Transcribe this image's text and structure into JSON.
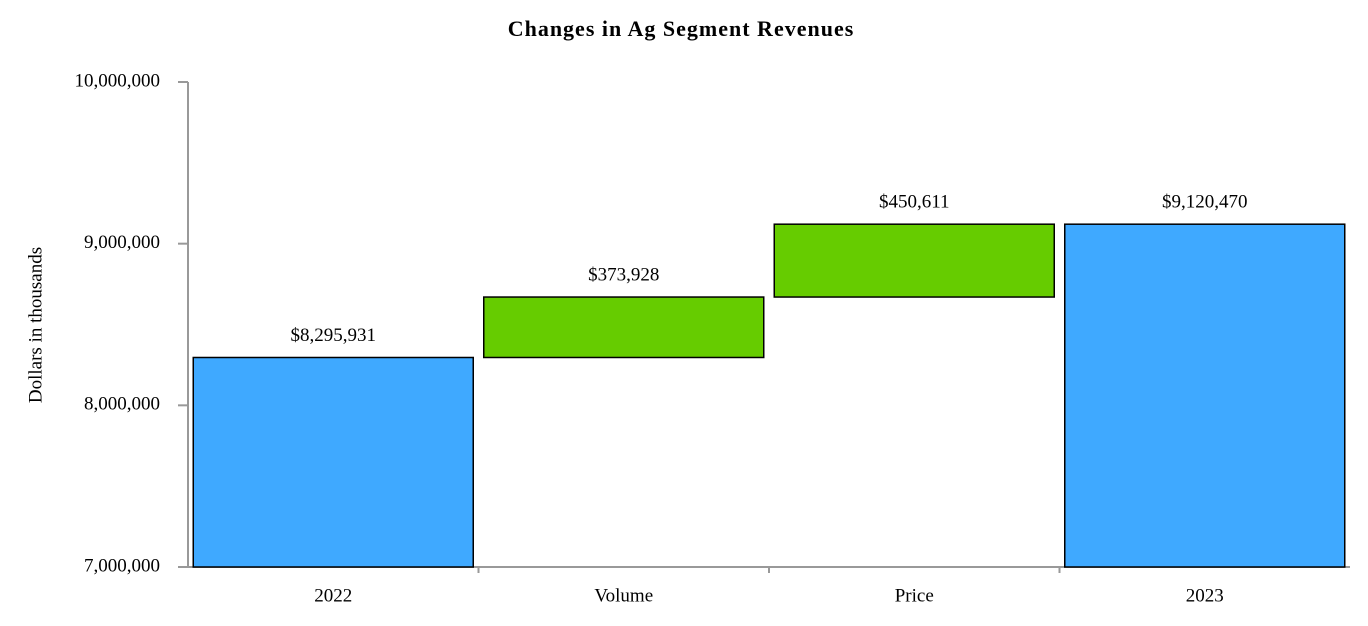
{
  "chart_data": {
    "type": "waterfall",
    "title": "Changes in Ag Segment Revenues",
    "y_label": "Dollars in thousands",
    "categories": [
      "2022",
      "Volume",
      "Price",
      "2023"
    ],
    "values": [
      8295931,
      373928,
      450611,
      9120470
    ],
    "value_labels": [
      "$8,295,931",
      "$373,928",
      "$450,611",
      "$9,120,470"
    ],
    "measures": [
      "absolute",
      "relative",
      "relative",
      "absolute"
    ],
    "colors": [
      "#3fa9ff",
      "#66cc00",
      "#66cc00",
      "#3fa9ff"
    ],
    "ylim": [
      7000000,
      10000000
    ],
    "yticks": [
      {
        "value": 7000000,
        "label": "7,000,000"
      },
      {
        "value": 8000000,
        "label": "8,000,000"
      },
      {
        "value": 9000000,
        "label": "9,000,000"
      },
      {
        "value": 10000000,
        "label": "10,000,000"
      }
    ]
  }
}
